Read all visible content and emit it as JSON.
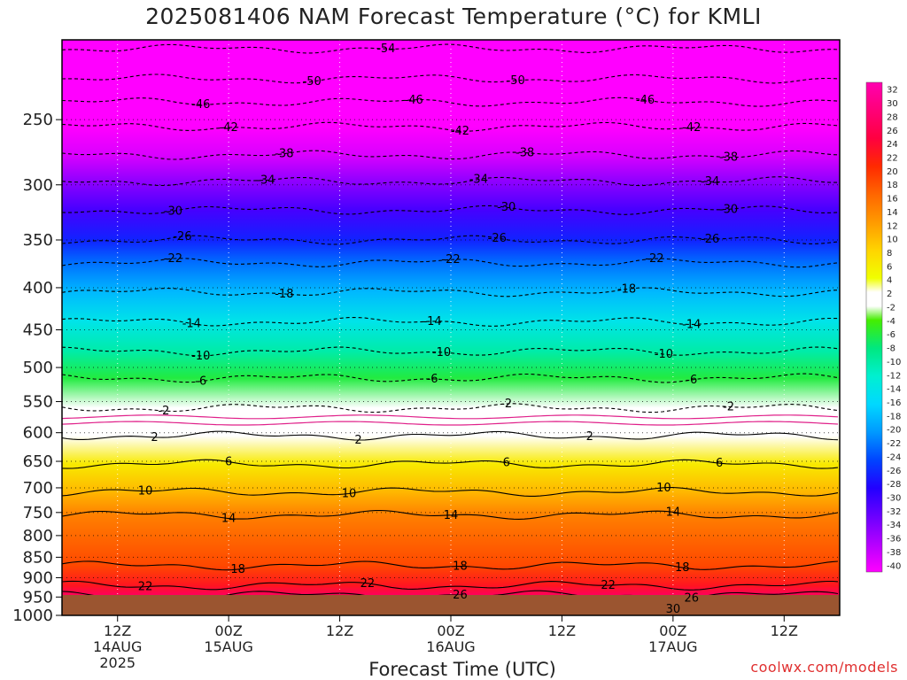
{
  "chart_data": {
    "type": "heatmap",
    "title": "2025081406 NAM Forecast Temperature (°C) for KMLI",
    "xlabel": "Forecast Time (UTC)",
    "ylabel": "",
    "y_scale": "log",
    "y_range": [
      200,
      1000
    ],
    "y_ticks": [
      250,
      300,
      350,
      400,
      450,
      500,
      550,
      600,
      650,
      700,
      750,
      800,
      850,
      900,
      950,
      1000
    ],
    "x_range_hours": [
      0,
      84
    ],
    "x_ticks": [
      {
        "hour": 6,
        "top": "12Z",
        "mid": "14AUG",
        "bot": "2025"
      },
      {
        "hour": 18,
        "top": "00Z",
        "mid": "15AUG",
        "bot": ""
      },
      {
        "hour": 30,
        "top": "12Z",
        "mid": "",
        "bot": ""
      },
      {
        "hour": 42,
        "top": "00Z",
        "mid": "16AUG",
        "bot": ""
      },
      {
        "hour": 54,
        "top": "12Z",
        "mid": "",
        "bot": ""
      },
      {
        "hour": 66,
        "top": "00Z",
        "mid": "17AUG",
        "bot": ""
      },
      {
        "hour": 78,
        "top": "12Z",
        "mid": "",
        "bot": ""
      }
    ],
    "colorbar_levels": [
      32,
      30,
      28,
      26,
      24,
      22,
      20,
      18,
      16,
      14,
      12,
      10,
      8,
      6,
      4,
      2,
      -2,
      -4,
      -6,
      -8,
      -10,
      -12,
      -14,
      -16,
      -18,
      -20,
      -22,
      -24,
      -26,
      -28,
      -30,
      -32,
      -34,
      -36,
      -38,
      -40
    ],
    "grid": true,
    "isotherms": [
      {
        "t": -54,
        "p": 205,
        "dashed": true,
        "labels": [
          {
            "hour": 35,
            "text": "-54"
          }
        ]
      },
      {
        "t": -50,
        "p": 223,
        "dashed": true,
        "labels": [
          {
            "hour": 27,
            "text": "-50"
          },
          {
            "hour": 49,
            "text": "-50"
          }
        ]
      },
      {
        "t": -46,
        "p": 238,
        "dashed": true,
        "labels": [
          {
            "hour": 15,
            "text": "-46"
          },
          {
            "hour": 38,
            "text": "-46"
          },
          {
            "hour": 63,
            "text": "-46"
          }
        ]
      },
      {
        "t": -42,
        "p": 255,
        "dashed": true,
        "labels": [
          {
            "hour": 18,
            "text": "-42"
          },
          {
            "hour": 43,
            "text": "-42"
          },
          {
            "hour": 68,
            "text": "-42"
          }
        ]
      },
      {
        "t": -38,
        "p": 276,
        "dashed": true,
        "labels": [
          {
            "hour": 24,
            "text": "-38"
          },
          {
            "hour": 50,
            "text": "-38"
          },
          {
            "hour": 72,
            "text": "-38"
          }
        ]
      },
      {
        "t": -34,
        "p": 297,
        "dashed": true,
        "labels": [
          {
            "hour": 22,
            "text": "-34"
          },
          {
            "hour": 45,
            "text": "-34"
          },
          {
            "hour": 70,
            "text": "-34"
          }
        ]
      },
      {
        "t": -30,
        "p": 322,
        "dashed": true,
        "labels": [
          {
            "hour": 12,
            "text": "-30"
          },
          {
            "hour": 48,
            "text": "-30"
          },
          {
            "hour": 72,
            "text": "-30"
          }
        ]
      },
      {
        "t": -26,
        "p": 350,
        "dashed": true,
        "labels": [
          {
            "hour": 13,
            "text": "-26"
          },
          {
            "hour": 47,
            "text": "-26"
          },
          {
            "hour": 70,
            "text": "-26"
          }
        ]
      },
      {
        "t": -22,
        "p": 373,
        "dashed": true,
        "labels": [
          {
            "hour": 12,
            "text": "-22"
          },
          {
            "hour": 42,
            "text": "-22"
          },
          {
            "hour": 64,
            "text": "-22"
          }
        ]
      },
      {
        "t": -18,
        "p": 405,
        "dashed": true,
        "labels": [
          {
            "hour": 24,
            "text": "-18"
          },
          {
            "hour": 61,
            "text": "-18"
          }
        ]
      },
      {
        "t": -14,
        "p": 440,
        "dashed": true,
        "labels": [
          {
            "hour": 14,
            "text": "-14"
          },
          {
            "hour": 40,
            "text": "-14"
          },
          {
            "hour": 68,
            "text": "-14"
          }
        ]
      },
      {
        "t": -10,
        "p": 478,
        "dashed": true,
        "labels": [
          {
            "hour": 15,
            "text": "-10"
          },
          {
            "hour": 41,
            "text": "-10"
          },
          {
            "hour": 65,
            "text": "-10"
          }
        ]
      },
      {
        "t": -6,
        "p": 515,
        "dashed": true,
        "labels": [
          {
            "hour": 15,
            "text": "-6"
          },
          {
            "hour": 40,
            "text": "-6"
          },
          {
            "hour": 68,
            "text": "-6"
          }
        ]
      },
      {
        "t": -2,
        "p": 560,
        "dashed": true,
        "labels": [
          {
            "hour": 11,
            "text": "-2"
          },
          {
            "hour": 48,
            "text": "-2"
          },
          {
            "hour": 72,
            "text": "-2"
          }
        ]
      },
      {
        "t": 2,
        "p": 605,
        "dashed": false,
        "labels": [
          {
            "hour": 10,
            "text": "2"
          },
          {
            "hour": 32,
            "text": "2"
          },
          {
            "hour": 57,
            "text": "2"
          }
        ]
      },
      {
        "t": 6,
        "p": 655,
        "dashed": false,
        "labels": [
          {
            "hour": 18,
            "text": "6"
          },
          {
            "hour": 48,
            "text": "6"
          },
          {
            "hour": 71,
            "text": "6"
          }
        ]
      },
      {
        "t": 10,
        "p": 708,
        "dashed": false,
        "labels": [
          {
            "hour": 9,
            "text": "10"
          },
          {
            "hour": 31,
            "text": "10"
          },
          {
            "hour": 65,
            "text": "10"
          }
        ]
      },
      {
        "t": 14,
        "p": 755,
        "dashed": false,
        "labels": [
          {
            "hour": 18,
            "text": "14"
          },
          {
            "hour": 42,
            "text": "14"
          },
          {
            "hour": 66,
            "text": "14"
          }
        ]
      },
      {
        "t": 18,
        "p": 870,
        "dashed": false,
        "labels": [
          {
            "hour": 19,
            "text": "18"
          },
          {
            "hour": 43,
            "text": "18"
          },
          {
            "hour": 67,
            "text": "18"
          }
        ]
      },
      {
        "t": 22,
        "p": 920,
        "dashed": false,
        "labels": [
          {
            "hour": 9,
            "text": "22"
          },
          {
            "hour": 33,
            "text": "22"
          },
          {
            "hour": 59,
            "text": "22"
          }
        ]
      },
      {
        "t": 26,
        "p": 945,
        "dashed": false,
        "labels": [
          {
            "hour": 43,
            "text": "26"
          },
          {
            "hour": 68,
            "text": "26"
          }
        ]
      },
      {
        "t": 30,
        "p": 975,
        "dashed": false,
        "labels": [
          {
            "hour": 66,
            "text": "30"
          }
        ]
      }
    ]
  },
  "colors": {
    "underground": "#9b5530",
    "pink_isotherm": "#e0208a",
    "watermark": "#e03030"
  },
  "watermark": "coolwx.com/models"
}
